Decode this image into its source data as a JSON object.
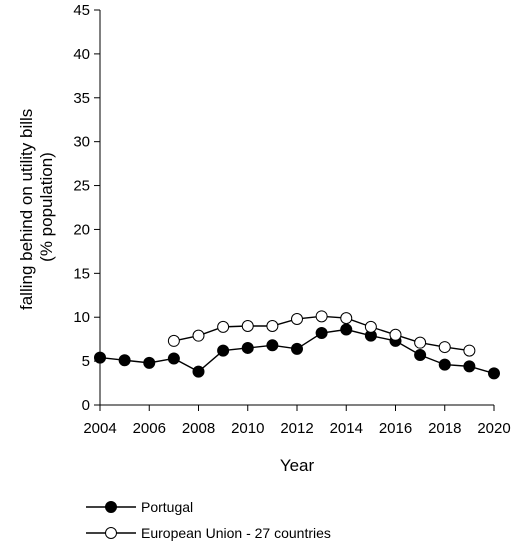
{
  "chart_data": {
    "type": "line",
    "title": "",
    "xlabel": "Year",
    "ylabel": [
      "falling behind on utility bills",
      "(% population)"
    ],
    "xlim": [
      2004,
      2020
    ],
    "ylim": [
      0,
      45
    ],
    "xticks": [
      2004,
      2006,
      2008,
      2010,
      2012,
      2014,
      2016,
      2018,
      2020
    ],
    "yticks": [
      0,
      5,
      10,
      15,
      20,
      25,
      30,
      35,
      40,
      45
    ],
    "grid": false,
    "legend": "bottom",
    "series": [
      {
        "name": "Portugal",
        "marker": "filled-circle",
        "color": "#000000",
        "x": [
          2004,
          2005,
          2006,
          2007,
          2008,
          2009,
          2010,
          2011,
          2012,
          2013,
          2014,
          2015,
          2016,
          2017,
          2018,
          2019,
          2020
        ],
        "y": [
          5.4,
          5.1,
          4.8,
          5.3,
          3.8,
          6.2,
          6.5,
          6.8,
          6.4,
          8.2,
          8.6,
          7.9,
          7.3,
          5.7,
          4.6,
          4.4,
          3.6
        ]
      },
      {
        "name": "European Union - 27 countries",
        "marker": "open-circle",
        "color": "#000000",
        "x": [
          2007,
          2008,
          2009,
          2010,
          2011,
          2012,
          2013,
          2014,
          2015,
          2016,
          2017,
          2018,
          2019
        ],
        "y": [
          7.3,
          7.9,
          8.9,
          9.0,
          9.0,
          9.8,
          10.1,
          9.9,
          8.9,
          8.0,
          7.1,
          6.6,
          6.2
        ]
      }
    ]
  }
}
